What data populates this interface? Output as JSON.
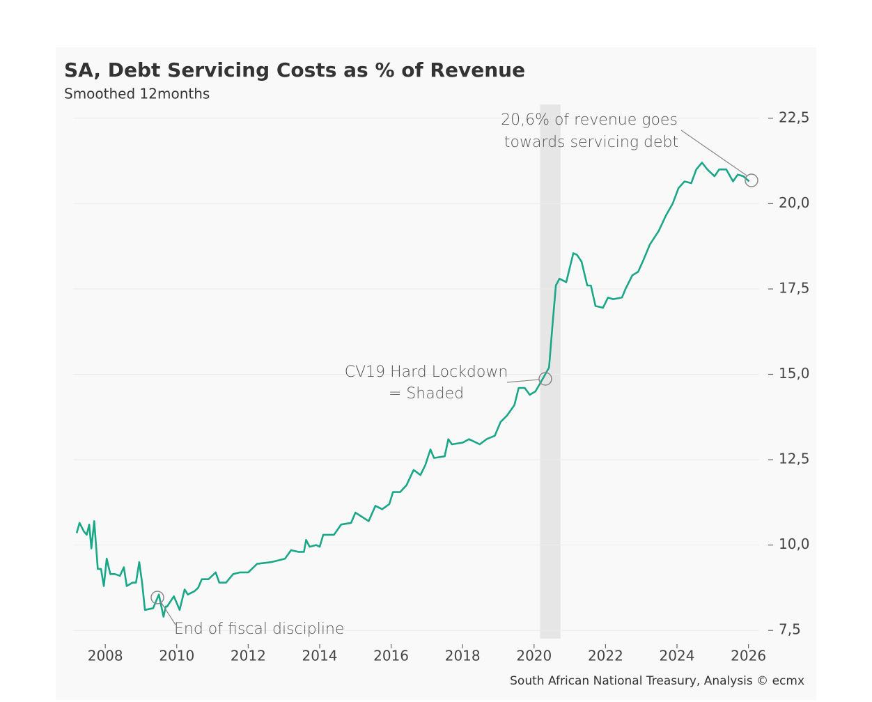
{
  "chart_data": {
    "type": "line",
    "title": "SA, Debt Servicing Costs as % of Revenue",
    "subtitle": "Smoothed 12months",
    "source": "South African National Treasury, Analysis © ecmx",
    "color": "#1aa787",
    "x": [
      2007.2,
      2007.28,
      2007.4,
      2007.48,
      2007.55,
      2007.61,
      2007.69,
      2007.79,
      2007.88,
      2007.96,
      2008.04,
      2008.14,
      2008.27,
      2008.41,
      2008.52,
      2008.6,
      2008.76,
      2008.86,
      2008.95,
      2009.03,
      2009.11,
      2009.34,
      2009.5,
      2009.63,
      2009.69,
      2009.73,
      2009.92,
      2010.08,
      2010.22,
      2010.31,
      2010.5,
      2010.6,
      2010.7,
      2010.89,
      2011.09,
      2011.19,
      2011.38,
      2011.58,
      2011.77,
      2012.0,
      2012.25,
      2012.65,
      2013.03,
      2013.2,
      2013.4,
      2013.56,
      2013.62,
      2013.72,
      2013.9,
      2014.0,
      2014.1,
      2014.4,
      2014.6,
      2014.88,
      2015.0,
      2015.15,
      2015.37,
      2015.56,
      2015.75,
      2015.95,
      2016.05,
      2016.25,
      2016.43,
      2016.63,
      2016.82,
      2016.96,
      2017.1,
      2017.2,
      2017.5,
      2017.6,
      2017.7,
      2018.0,
      2018.18,
      2018.48,
      2018.67,
      2018.9,
      2019.06,
      2019.25,
      2019.45,
      2019.57,
      2019.74,
      2019.88,
      2020.04,
      2020.26,
      2020.42,
      2020.52,
      2020.61,
      2020.71,
      2020.9,
      2021.1,
      2021.2,
      2021.33,
      2021.49,
      2021.59,
      2021.72,
      2021.93,
      2022.07,
      2022.21,
      2022.46,
      2022.56,
      2022.75,
      2022.91,
      2023.04,
      2023.24,
      2023.49,
      2023.69,
      2023.88,
      2024.04,
      2024.21,
      2024.4,
      2024.54,
      2024.7,
      2024.85,
      2025.05,
      2025.18,
      2025.38,
      2025.57,
      2025.7,
      2025.86,
      2026.02
    ],
    "values": [
      10.35,
      10.65,
      10.4,
      10.3,
      10.6,
      9.9,
      10.7,
      9.3,
      9.3,
      8.8,
      9.6,
      9.15,
      9.15,
      9.1,
      9.35,
      8.8,
      8.9,
      8.9,
      9.5,
      8.9,
      8.1,
      8.15,
      8.55,
      7.9,
      8.2,
      8.2,
      8.5,
      8.1,
      8.7,
      8.55,
      8.65,
      8.75,
      9.0,
      9.0,
      9.2,
      8.9,
      8.9,
      9.15,
      9.2,
      9.2,
      9.45,
      9.5,
      9.6,
      9.85,
      9.8,
      9.8,
      10.15,
      9.95,
      10.0,
      9.95,
      10.3,
      10.3,
      10.6,
      10.65,
      10.95,
      10.85,
      10.7,
      11.15,
      11.05,
      11.2,
      11.55,
      11.55,
      11.75,
      12.2,
      12.05,
      12.35,
      12.8,
      12.55,
      12.6,
      13.1,
      12.95,
      13.0,
      13.1,
      12.95,
      13.1,
      13.2,
      13.6,
      13.8,
      14.1,
      14.6,
      14.6,
      14.4,
      14.5,
      14.9,
      15.2,
      16.5,
      17.6,
      17.8,
      17.7,
      18.55,
      18.5,
      18.3,
      17.6,
      17.6,
      17.0,
      16.95,
      17.25,
      17.2,
      17.25,
      17.5,
      17.9,
      18.0,
      18.3,
      18.8,
      19.2,
      19.65,
      20.0,
      20.45,
      20.65,
      20.6,
      21.0,
      21.2,
      21.0,
      20.8,
      21.0,
      21.0,
      20.65,
      20.85,
      20.8,
      20.65
    ],
    "shaded": [
      2020.17,
      2020.74
    ],
    "annotations": [
      "End of fiscal discipline",
      "CV19 Hard Lockdown",
      "= Shaded",
      "20,6% of revenue goes",
      "towards servicing debt"
    ],
    "xlim": [
      2007.1,
      2026.3
    ],
    "xticks": [
      2008,
      2010,
      2012,
      2014,
      2016,
      2018,
      2020,
      2022,
      2024,
      2026
    ],
    "ylim": [
      7.3,
      22.7
    ],
    "yticks": [
      {
        "value": 7.5,
        "label": "7,5"
      },
      {
        "value": 10,
        "label": "10,0"
      },
      {
        "value": 12.5,
        "label": "12,5"
      },
      {
        "value": 15,
        "label": "15,0"
      },
      {
        "value": 17.5,
        "label": "17,5"
      },
      {
        "value": 20,
        "label": "20,0"
      },
      {
        "value": 22.5,
        "label": "22,5"
      }
    ],
    "grid": true
  }
}
